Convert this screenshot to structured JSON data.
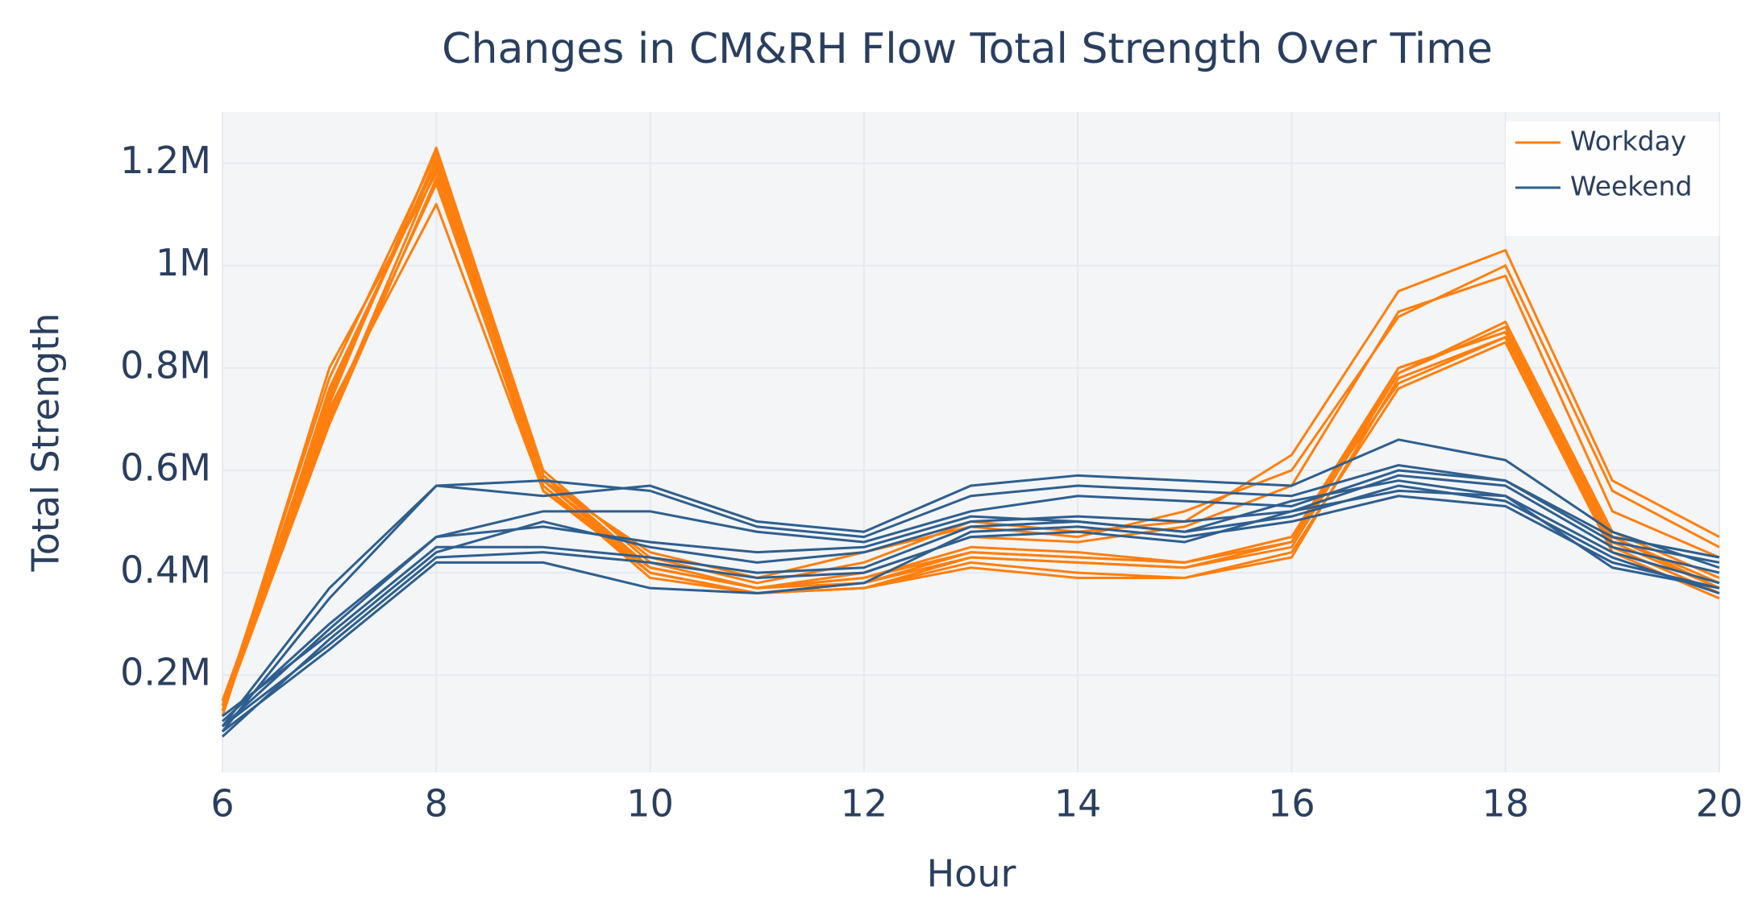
{
  "chart_data": {
    "type": "line",
    "title": "Changes in CM&RH Flow Total Strength Over Time",
    "x_label": "Hour",
    "y_label": "Total Strength",
    "x": [
      6,
      7,
      8,
      9,
      10,
      11,
      12,
      13,
      14,
      15,
      16,
      17,
      18,
      19,
      20
    ],
    "xlim": [
      6,
      20
    ],
    "xticks": [
      6,
      8,
      10,
      12,
      14,
      16,
      18,
      20
    ],
    "ylim": [
      10000,
      1300000
    ],
    "yticks": [
      {
        "value": 200000,
        "label": "0.2M"
      },
      {
        "value": 400000,
        "label": "0.4M"
      },
      {
        "value": 600000,
        "label": "0.6M"
      },
      {
        "value": 800000,
        "label": "0.8M"
      },
      {
        "value": 1000000,
        "label": "1M"
      },
      {
        "value": 1200000,
        "label": "1.2M"
      }
    ],
    "grid": true,
    "legend": "top-right",
    "series": [
      {
        "name": "Workday",
        "color": "#ff7f0e",
        "values": [
          140000,
          780000,
          1220000,
          590000,
          430000,
          380000,
          420000,
          500000,
          480000,
          500000,
          630000,
          950000,
          1030000,
          580000,
          470000
        ]
      },
      {
        "name": "Workday",
        "color": "#ff7f0e",
        "values": [
          130000,
          800000,
          1180000,
          580000,
          440000,
          390000,
          440000,
          490000,
          470000,
          520000,
          600000,
          900000,
          1000000,
          560000,
          450000
        ]
      },
      {
        "name": "Workday",
        "color": "#ff7f0e",
        "values": [
          150000,
          720000,
          1120000,
          560000,
          410000,
          370000,
          400000,
          470000,
          460000,
          490000,
          570000,
          910000,
          980000,
          520000,
          430000
        ]
      },
      {
        "name": "Workday",
        "color": "#ff7f0e",
        "values": [
          120000,
          760000,
          1200000,
          570000,
          400000,
          360000,
          370000,
          430000,
          420000,
          410000,
          460000,
          790000,
          880000,
          470000,
          380000
        ]
      },
      {
        "name": "Workday",
        "color": "#ff7f0e",
        "values": [
          140000,
          700000,
          1190000,
          580000,
          400000,
          360000,
          380000,
          440000,
          430000,
          420000,
          470000,
          800000,
          870000,
          460000,
          370000
        ]
      },
      {
        "name": "Workday",
        "color": "#ff7f0e",
        "values": [
          130000,
          740000,
          1210000,
          590000,
          410000,
          370000,
          390000,
          450000,
          440000,
          420000,
          470000,
          770000,
          860000,
          450000,
          360000
        ]
      },
      {
        "name": "Workday",
        "color": "#ff7f0e",
        "values": [
          150000,
          710000,
          1160000,
          570000,
          390000,
          360000,
          370000,
          420000,
          400000,
          390000,
          440000,
          760000,
          850000,
          440000,
          350000
        ]
      },
      {
        "name": "Workday",
        "color": "#ff7f0e",
        "values": [
          140000,
          730000,
          1230000,
          600000,
          420000,
          370000,
          380000,
          430000,
          420000,
          410000,
          450000,
          790000,
          890000,
          480000,
          390000
        ]
      },
      {
        "name": "Workday",
        "color": "#ff7f0e",
        "values": [
          130000,
          690000,
          1170000,
          560000,
          400000,
          360000,
          370000,
          410000,
          390000,
          390000,
          430000,
          780000,
          860000,
          450000,
          360000
        ]
      },
      {
        "name": "Workday",
        "color": "#ff7f0e",
        "values": [
          140000,
          750000,
          1200000,
          580000,
          410000,
          370000,
          390000,
          440000,
          430000,
          420000,
          460000,
          800000,
          870000,
          470000,
          370000
        ]
      },
      {
        "name": "Weekend",
        "color": "#2e5f8f",
        "values": [
          100000,
          370000,
          570000,
          550000,
          570000,
          500000,
          480000,
          570000,
          590000,
          580000,
          570000,
          660000,
          620000,
          480000,
          410000
        ]
      },
      {
        "name": "Weekend",
        "color": "#2e5f8f",
        "values": [
          90000,
          350000,
          570000,
          580000,
          560000,
          490000,
          470000,
          550000,
          570000,
          560000,
          550000,
          610000,
          580000,
          470000,
          430000
        ]
      },
      {
        "name": "Weekend",
        "color": "#2e5f8f",
        "values": [
          110000,
          300000,
          470000,
          520000,
          520000,
          480000,
          460000,
          520000,
          550000,
          540000,
          530000,
          600000,
          580000,
          460000,
          420000
        ]
      },
      {
        "name": "Weekend",
        "color": "#2e5f8f",
        "values": [
          80000,
          270000,
          440000,
          500000,
          450000,
          420000,
          440000,
          500000,
          510000,
          500000,
          520000,
          590000,
          570000,
          450000,
          400000
        ]
      },
      {
        "name": "Weekend",
        "color": "#2e5f8f",
        "values": [
          100000,
          290000,
          470000,
          490000,
          460000,
          440000,
          450000,
          510000,
          500000,
          480000,
          540000,
          580000,
          550000,
          440000,
          380000
        ]
      },
      {
        "name": "Weekend",
        "color": "#2e5f8f",
        "values": [
          90000,
          250000,
          420000,
          420000,
          370000,
          360000,
          380000,
          480000,
          490000,
          470000,
          500000,
          550000,
          530000,
          420000,
          370000
        ]
      },
      {
        "name": "Weekend",
        "color": "#2e5f8f",
        "values": [
          120000,
          280000,
          450000,
          450000,
          430000,
          400000,
          410000,
          490000,
          500000,
          480000,
          510000,
          570000,
          540000,
          430000,
          360000
        ]
      },
      {
        "name": "Weekend",
        "color": "#2e5f8f",
        "values": [
          100000,
          260000,
          430000,
          440000,
          420000,
          390000,
          400000,
          470000,
          480000,
          460000,
          520000,
          560000,
          550000,
          410000,
          370000
        ]
      }
    ]
  }
}
